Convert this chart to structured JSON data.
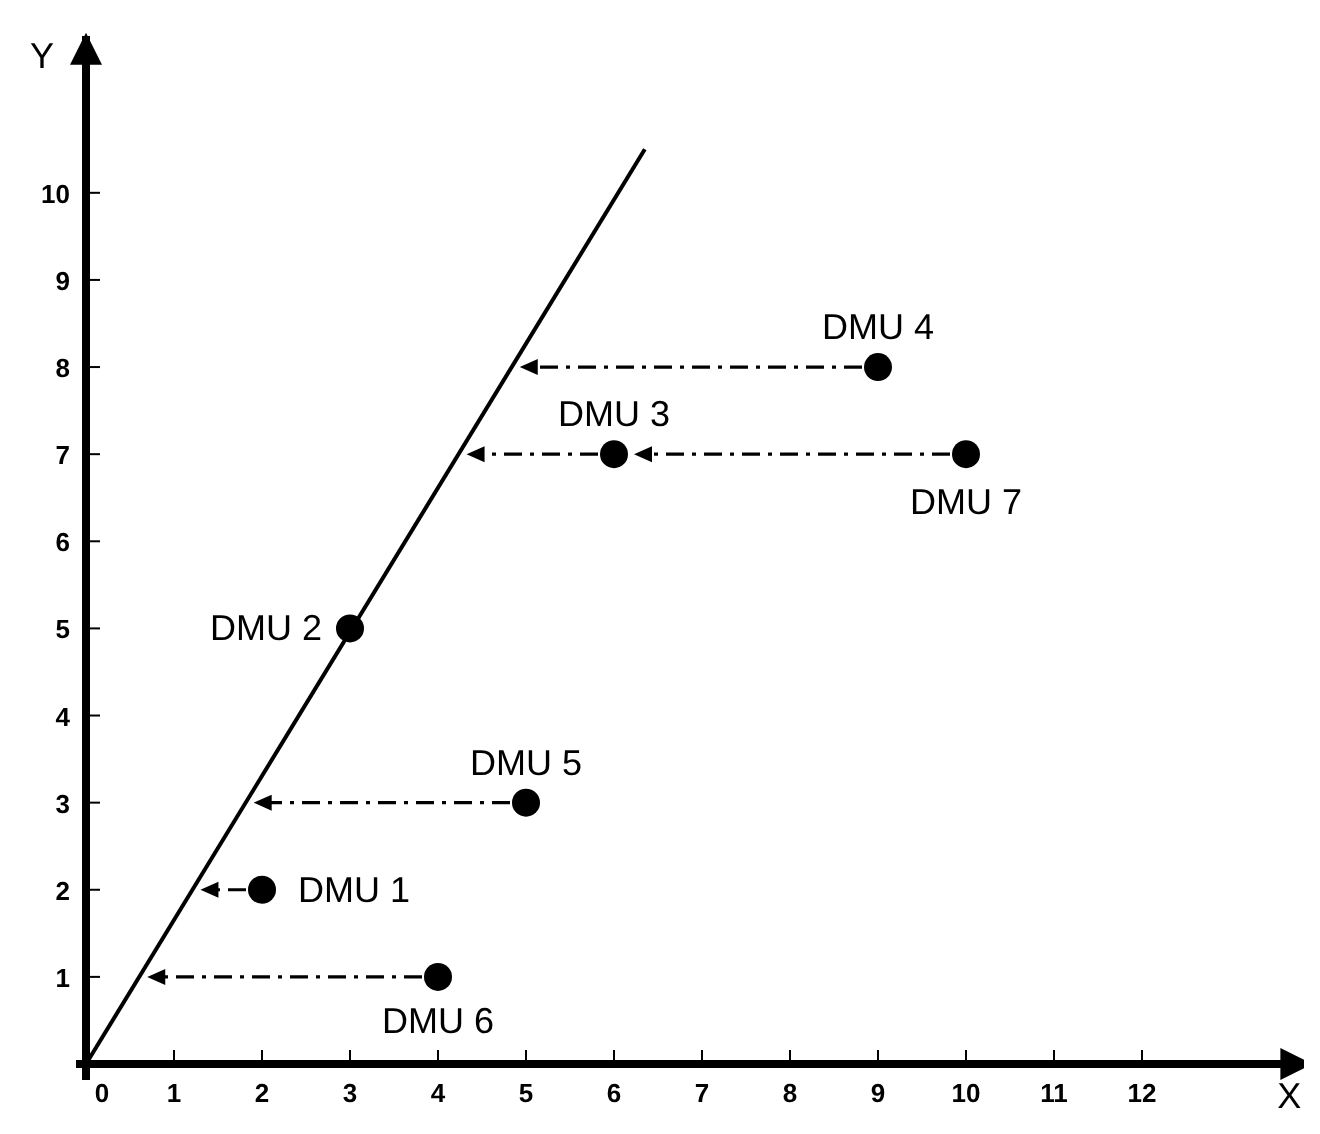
{
  "chart_data": {
    "type": "scatter",
    "xlabel": "X",
    "ylabel": "Y",
    "xlim": [
      0,
      13.9
    ],
    "ylim": [
      0,
      11.8
    ],
    "xticks": [
      0,
      1,
      2,
      3,
      4,
      5,
      6,
      7,
      8,
      9,
      10,
      11,
      12
    ],
    "yticks": [
      1,
      2,
      3,
      4,
      5,
      6,
      7,
      8,
      9,
      10
    ],
    "grid": false,
    "marker": "circle",
    "series": [
      {
        "type": "line",
        "color": "#000000",
        "line_style": "solid",
        "marker": "none",
        "x": [
          0,
          6.35
        ],
        "values": [
          0,
          10.5
        ]
      },
      {
        "color": "#000000",
        "x": [
          2,
          3,
          6,
          9,
          5,
          4,
          10
        ],
        "values": [
          2,
          5,
          7,
          8,
          3,
          1,
          7
        ]
      }
    ],
    "annotations": [
      {
        "text": "DMU 1",
        "x": 2,
        "y": 2
      },
      {
        "text": "DMU 2",
        "x": 3,
        "y": 5
      },
      {
        "text": "DMU 3",
        "x": 6,
        "y": 7
      },
      {
        "text": "DMU 4",
        "x": 9,
        "y": 8
      },
      {
        "text": "DMU 5",
        "x": 5,
        "y": 3
      },
      {
        "text": "DMU 6",
        "x": 4,
        "y": 1
      },
      {
        "text": "DMU 7",
        "x": 10,
        "y": 7
      }
    ]
  }
}
